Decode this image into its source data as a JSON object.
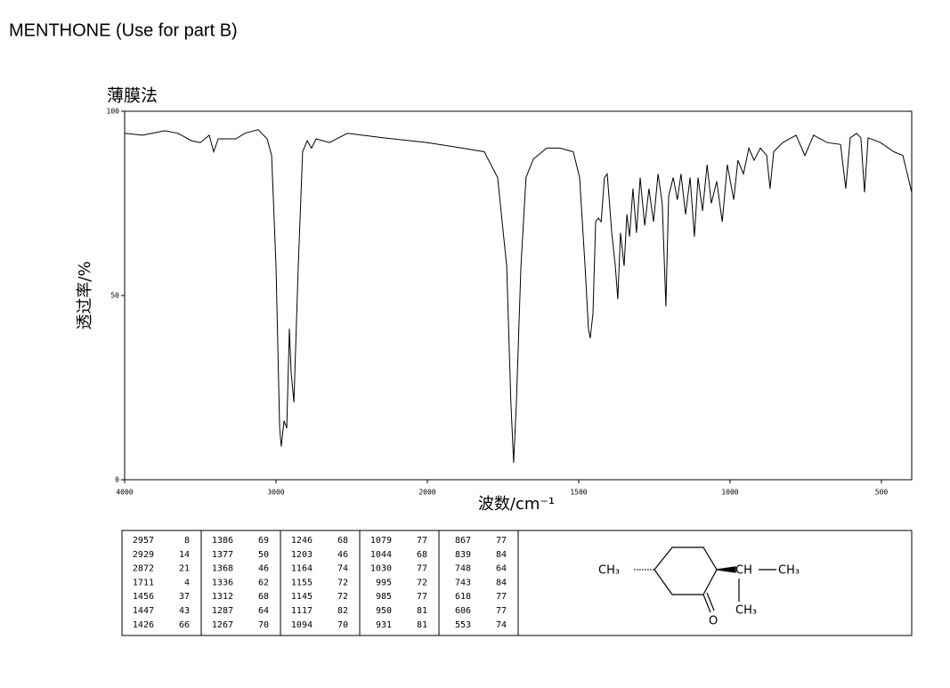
{
  "chart_data": {
    "type": "line",
    "title": "MENTHONE (Use for part B)",
    "subtitle": "薄膜法",
    "x_label": "波数/cm⁻¹",
    "y_label": "透过率/%",
    "xlim": [
      4000,
      400
    ],
    "xticks": [
      4000,
      3000,
      2000,
      1500,
      1000,
      500
    ],
    "ylim": [
      0,
      100
    ],
    "yticks": [
      0,
      50,
      100
    ],
    "x": [
      4000,
      3882,
      3735,
      3647,
      3559,
      3500,
      3441,
      3412,
      3382,
      3265,
      3206,
      3118,
      3059,
      3029,
      3000,
      2976,
      2965,
      2947,
      2929,
      2912,
      2900,
      2882,
      2853,
      2824,
      2794,
      2765,
      2735,
      2647,
      2529,
      2294,
      2000,
      1885,
      1812,
      1768,
      1738,
      1724,
      1715,
      1706,
      1691,
      1674,
      1650,
      1606,
      1562,
      1518,
      1497,
      1479,
      1468,
      1462,
      1453,
      1444,
      1435,
      1426,
      1415,
      1406,
      1391,
      1379,
      1371,
      1362,
      1350,
      1341,
      1332,
      1321,
      1309,
      1297,
      1282,
      1268,
      1253,
      1238,
      1224,
      1212,
      1203,
      1188,
      1174,
      1162,
      1147,
      1132,
      1118,
      1106,
      1091,
      1076,
      1062,
      1044,
      1026,
      1009,
      988,
      974,
      956,
      938,
      921,
      900,
      879,
      868,
      856,
      826,
      782,
      753,
      724,
      679,
      635,
      618,
      603,
      582,
      568,
      556,
      544,
      503,
      459,
      429,
      400
    ],
    "series": [
      {
        "name": "menthone",
        "color": "#000000",
        "values": [
          94,
          93.5,
          94.7,
          94,
          92,
          91.5,
          93.5,
          89,
          92.5,
          92.5,
          94,
          95,
          92.5,
          88,
          58,
          14,
          9,
          16,
          14,
          41,
          29,
          21,
          58,
          89,
          92,
          90,
          92.5,
          91.5,
          94,
          92.8,
          91.5,
          90,
          89,
          82,
          58,
          21,
          4.6,
          21,
          58,
          82,
          87,
          90,
          90,
          89,
          82,
          58,
          41,
          38.4,
          45,
          70,
          71,
          70,
          82,
          83,
          67,
          58,
          49,
          67,
          58,
          72,
          66,
          79,
          67,
          82,
          69,
          79,
          70,
          83,
          75,
          47,
          77,
          82,
          76,
          83,
          72,
          82,
          66,
          82,
          73,
          85.5,
          75,
          81,
          70,
          85.5,
          76,
          86.7,
          83,
          90,
          86.7,
          90,
          88,
          79,
          89,
          91.5,
          93.5,
          88,
          93.5,
          91.5,
          91,
          79,
          92.8,
          94,
          92.8,
          78,
          92.8,
          91.5,
          89,
          88,
          78
        ]
      }
    ]
  },
  "peak_table": {
    "columns": [
      [
        [
          2957,
          8
        ],
        [
          2929,
          14
        ],
        [
          2872,
          21
        ],
        [
          1711,
          4
        ],
        [
          1456,
          37
        ],
        [
          1447,
          43
        ],
        [
          1426,
          66
        ]
      ],
      [
        [
          1386,
          69
        ],
        [
          1377,
          50
        ],
        [
          1368,
          46
        ],
        [
          1336,
          62
        ],
        [
          1312,
          68
        ],
        [
          1287,
          64
        ],
        [
          1267,
          70
        ]
      ],
      [
        [
          1246,
          68
        ],
        [
          1203,
          46
        ],
        [
          1164,
          74
        ],
        [
          1155,
          72
        ],
        [
          1145,
          72
        ],
        [
          1117,
          82
        ],
        [
          1094,
          70
        ]
      ],
      [
        [
          1079,
          77
        ],
        [
          1044,
          68
        ],
        [
          1030,
          77
        ],
        [
          995,
          72
        ],
        [
          985,
          77
        ],
        [
          950,
          81
        ],
        [
          931,
          81
        ]
      ],
      [
        [
          867,
          77
        ],
        [
          839,
          84
        ],
        [
          748,
          64
        ],
        [
          743,
          84
        ],
        [
          618,
          77
        ],
        [
          606,
          77
        ],
        [
          553,
          74
        ]
      ]
    ]
  },
  "structure": {
    "labels": [
      "CH₃",
      "CH",
      "CH₃",
      "CH₃",
      "O"
    ]
  }
}
